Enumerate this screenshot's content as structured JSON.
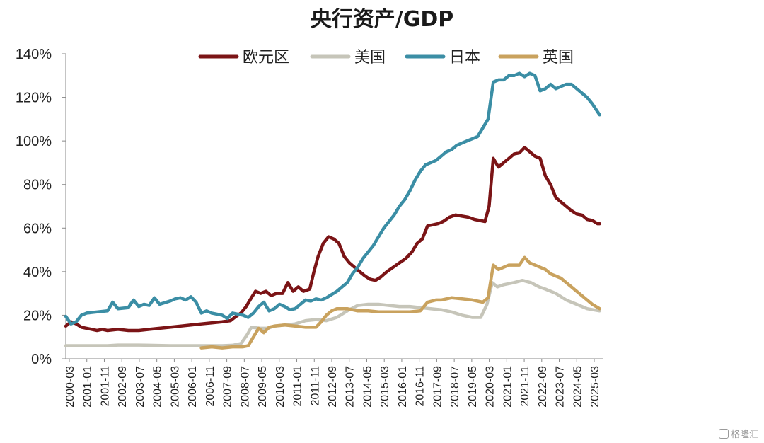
{
  "chart_data": {
    "type": "line",
    "title": "央行资产/GDP",
    "xlabel": "",
    "ylabel": "",
    "ylim": [
      0,
      140
    ],
    "yticks": [
      "0%",
      "20%",
      "40%",
      "60%",
      "80%",
      "100%",
      "120%",
      "140%"
    ],
    "x_start": 2000.0,
    "x_end": 2025.75,
    "xticks": [
      "2000-03",
      "2001-01",
      "2001-11",
      "2002-09",
      "2003-07",
      "2004-05",
      "2005-03",
      "2006-01",
      "2006-11",
      "2007-09",
      "2008-07",
      "2009-05",
      "2010-03",
      "2011-01",
      "2011-11",
      "2012-09",
      "2013-07",
      "2014-05",
      "2015-03",
      "2016-01",
      "2016-11",
      "2017-09",
      "2018-07",
      "2019-05",
      "2020-03",
      "2021-01",
      "2021-11",
      "2022-09",
      "2023-07",
      "2024-05",
      "2025-03"
    ],
    "legend_position": "top",
    "series": [
      {
        "name": "欧元区",
        "color": "#7b1416",
        "points": [
          [
            2000.0,
            15
          ],
          [
            2000.25,
            17
          ],
          [
            2000.5,
            16
          ],
          [
            2000.75,
            14.5
          ],
          [
            2001.0,
            14
          ],
          [
            2001.25,
            13.5
          ],
          [
            2001.5,
            13
          ],
          [
            2001.75,
            13.5
          ],
          [
            2002.0,
            13
          ],
          [
            2002.5,
            13.5
          ],
          [
            2003.0,
            13
          ],
          [
            2003.5,
            13
          ],
          [
            2004.0,
            13.5
          ],
          [
            2004.5,
            14
          ],
          [
            2005.0,
            14.5
          ],
          [
            2005.5,
            15
          ],
          [
            2006.0,
            15.5
          ],
          [
            2006.5,
            16
          ],
          [
            2007.0,
            16.5
          ],
          [
            2007.5,
            17
          ],
          [
            2007.9,
            17.5
          ],
          [
            2008.1,
            19
          ],
          [
            2008.4,
            21
          ],
          [
            2008.65,
            24
          ],
          [
            2008.9,
            28
          ],
          [
            2009.1,
            31
          ],
          [
            2009.35,
            30
          ],
          [
            2009.6,
            31
          ],
          [
            2009.85,
            29
          ],
          [
            2010.1,
            30
          ],
          [
            2010.4,
            30
          ],
          [
            2010.65,
            35
          ],
          [
            2010.9,
            31
          ],
          [
            2011.15,
            33
          ],
          [
            2011.4,
            31
          ],
          [
            2011.7,
            32
          ],
          [
            2011.9,
            40
          ],
          [
            2012.1,
            47
          ],
          [
            2012.35,
            53
          ],
          [
            2012.6,
            56
          ],
          [
            2012.85,
            55
          ],
          [
            2013.1,
            53
          ],
          [
            2013.35,
            47
          ],
          [
            2013.6,
            44
          ],
          [
            2013.85,
            42
          ],
          [
            2014.1,
            40
          ],
          [
            2014.35,
            38
          ],
          [
            2014.6,
            36.5
          ],
          [
            2014.85,
            36
          ],
          [
            2015.1,
            37.5
          ],
          [
            2015.4,
            40
          ],
          [
            2015.7,
            42
          ],
          [
            2016.0,
            44
          ],
          [
            2016.3,
            46
          ],
          [
            2016.6,
            49
          ],
          [
            2016.85,
            53
          ],
          [
            2017.1,
            55
          ],
          [
            2017.35,
            61
          ],
          [
            2017.6,
            61.5
          ],
          [
            2017.85,
            62
          ],
          [
            2018.1,
            63
          ],
          [
            2018.4,
            65
          ],
          [
            2018.7,
            66
          ],
          [
            2019.0,
            65.5
          ],
          [
            2019.3,
            65
          ],
          [
            2019.6,
            64
          ],
          [
            2019.85,
            63.5
          ],
          [
            2020.1,
            63
          ],
          [
            2020.3,
            70
          ],
          [
            2020.5,
            92
          ],
          [
            2020.75,
            88
          ],
          [
            2021.0,
            90
          ],
          [
            2021.25,
            92
          ],
          [
            2021.5,
            94
          ],
          [
            2021.75,
            94.5
          ],
          [
            2022.0,
            97
          ],
          [
            2022.25,
            95
          ],
          [
            2022.5,
            93
          ],
          [
            2022.75,
            92
          ],
          [
            2023.0,
            84
          ],
          [
            2023.25,
            80
          ],
          [
            2023.5,
            74
          ],
          [
            2023.75,
            72
          ],
          [
            2024.0,
            70
          ],
          [
            2024.25,
            68
          ],
          [
            2024.5,
            66.5
          ],
          [
            2024.75,
            66
          ],
          [
            2025.0,
            64
          ],
          [
            2025.25,
            63.5
          ],
          [
            2025.5,
            62
          ],
          [
            2025.6,
            62
          ]
        ]
      },
      {
        "name": "美国",
        "color": "#c6c5b9",
        "points": [
          [
            2000.0,
            6
          ],
          [
            2001.0,
            6
          ],
          [
            2002.0,
            6
          ],
          [
            2002.5,
            6.3
          ],
          [
            2003.0,
            6.3
          ],
          [
            2003.5,
            6.3
          ],
          [
            2004.0,
            6.2
          ],
          [
            2005.0,
            6
          ],
          [
            2006.0,
            6
          ],
          [
            2007.0,
            6
          ],
          [
            2007.5,
            6
          ],
          [
            2008.0,
            6.2
          ],
          [
            2008.4,
            7
          ],
          [
            2008.7,
            11
          ],
          [
            2008.9,
            14.5
          ],
          [
            2009.3,
            14
          ],
          [
            2009.7,
            14
          ],
          [
            2010.0,
            15
          ],
          [
            2010.5,
            15.5
          ],
          [
            2011.0,
            16
          ],
          [
            2011.5,
            17.5
          ],
          [
            2012.0,
            18
          ],
          [
            2012.5,
            17.5
          ],
          [
            2013.0,
            19
          ],
          [
            2013.5,
            22
          ],
          [
            2014.0,
            24.5
          ],
          [
            2014.5,
            25
          ],
          [
            2015.0,
            25
          ],
          [
            2015.5,
            24.5
          ],
          [
            2016.0,
            24
          ],
          [
            2016.5,
            24
          ],
          [
            2017.0,
            23.5
          ],
          [
            2017.5,
            23
          ],
          [
            2018.0,
            22.5
          ],
          [
            2018.5,
            21.5
          ],
          [
            2019.0,
            20
          ],
          [
            2019.5,
            19
          ],
          [
            2019.9,
            19
          ],
          [
            2020.2,
            25
          ],
          [
            2020.45,
            35
          ],
          [
            2020.7,
            33
          ],
          [
            2021.0,
            34
          ],
          [
            2021.5,
            35
          ],
          [
            2021.9,
            36
          ],
          [
            2022.3,
            35
          ],
          [
            2022.7,
            33
          ],
          [
            2023.0,
            32
          ],
          [
            2023.5,
            30
          ],
          [
            2024.0,
            27
          ],
          [
            2024.5,
            25
          ],
          [
            2025.0,
            23
          ],
          [
            2025.6,
            22
          ]
        ]
      },
      {
        "name": "日本",
        "color": "#3b8ea5",
        "points": [
          [
            2000.0,
            19.5
          ],
          [
            2000.25,
            16
          ],
          [
            2000.5,
            17
          ],
          [
            2000.75,
            20
          ],
          [
            2001.0,
            21
          ],
          [
            2001.5,
            21.5
          ],
          [
            2002.0,
            22
          ],
          [
            2002.25,
            26
          ],
          [
            2002.5,
            23
          ],
          [
            2003.0,
            23.5
          ],
          [
            2003.25,
            27
          ],
          [
            2003.5,
            24
          ],
          [
            2003.75,
            25
          ],
          [
            2004.0,
            24.5
          ],
          [
            2004.25,
            28
          ],
          [
            2004.5,
            25
          ],
          [
            2005.0,
            26.5
          ],
          [
            2005.25,
            27.5
          ],
          [
            2005.5,
            28
          ],
          [
            2005.75,
            27
          ],
          [
            2006.0,
            28.5
          ],
          [
            2006.25,
            26
          ],
          [
            2006.5,
            21
          ],
          [
            2006.75,
            22
          ],
          [
            2007.0,
            21
          ],
          [
            2007.5,
            20
          ],
          [
            2007.75,
            18.5
          ],
          [
            2008.0,
            21
          ],
          [
            2008.5,
            20
          ],
          [
            2008.75,
            19
          ],
          [
            2009.0,
            21
          ],
          [
            2009.25,
            24
          ],
          [
            2009.5,
            26
          ],
          [
            2009.75,
            22
          ],
          [
            2010.0,
            23
          ],
          [
            2010.25,
            25
          ],
          [
            2010.5,
            24
          ],
          [
            2010.75,
            22.5
          ],
          [
            2011.0,
            23
          ],
          [
            2011.25,
            25
          ],
          [
            2011.5,
            27
          ],
          [
            2011.75,
            26.5
          ],
          [
            2012.0,
            27.5
          ],
          [
            2012.25,
            27
          ],
          [
            2012.5,
            28
          ],
          [
            2012.75,
            29.5
          ],
          [
            2013.0,
            31
          ],
          [
            2013.25,
            33
          ],
          [
            2013.5,
            35
          ],
          [
            2013.75,
            39
          ],
          [
            2014.0,
            42
          ],
          [
            2014.25,
            46
          ],
          [
            2014.5,
            49
          ],
          [
            2014.75,
            52
          ],
          [
            2015.0,
            56
          ],
          [
            2015.25,
            60
          ],
          [
            2015.5,
            63
          ],
          [
            2015.75,
            66
          ],
          [
            2016.0,
            70
          ],
          [
            2016.25,
            73
          ],
          [
            2016.5,
            77
          ],
          [
            2016.75,
            82
          ],
          [
            2017.0,
            86
          ],
          [
            2017.25,
            89
          ],
          [
            2017.5,
            90
          ],
          [
            2017.75,
            91
          ],
          [
            2018.0,
            93
          ],
          [
            2018.25,
            95
          ],
          [
            2018.5,
            96
          ],
          [
            2018.75,
            98
          ],
          [
            2019.0,
            99
          ],
          [
            2019.25,
            100
          ],
          [
            2019.5,
            101
          ],
          [
            2019.75,
            102
          ],
          [
            2020.0,
            106
          ],
          [
            2020.25,
            110
          ],
          [
            2020.5,
            127
          ],
          [
            2020.75,
            128
          ],
          [
            2021.0,
            128
          ],
          [
            2021.25,
            130
          ],
          [
            2021.5,
            130
          ],
          [
            2021.75,
            131
          ],
          [
            2022.0,
            129.5
          ],
          [
            2022.25,
            131
          ],
          [
            2022.5,
            130
          ],
          [
            2022.75,
            123
          ],
          [
            2023.0,
            124
          ],
          [
            2023.25,
            126
          ],
          [
            2023.5,
            124
          ],
          [
            2023.75,
            125
          ],
          [
            2024.0,
            126
          ],
          [
            2024.25,
            126
          ],
          [
            2024.5,
            124
          ],
          [
            2024.75,
            122
          ],
          [
            2025.0,
            120
          ],
          [
            2025.25,
            117
          ],
          [
            2025.6,
            112
          ]
        ]
      },
      {
        "name": "英国",
        "color": "#c9a25e",
        "points": [
          [
            2006.5,
            5
          ],
          [
            2007.0,
            5.5
          ],
          [
            2007.5,
            5
          ],
          [
            2008.0,
            5.5
          ],
          [
            2008.5,
            5.5
          ],
          [
            2008.75,
            6
          ],
          [
            2009.0,
            10
          ],
          [
            2009.25,
            14
          ],
          [
            2009.5,
            12
          ],
          [
            2009.75,
            14.5
          ],
          [
            2010.0,
            15
          ],
          [
            2010.5,
            15.5
          ],
          [
            2011.0,
            15
          ],
          [
            2011.5,
            14.5
          ],
          [
            2012.0,
            14.5
          ],
          [
            2012.25,
            17
          ],
          [
            2012.5,
            20
          ],
          [
            2012.75,
            22
          ],
          [
            2013.0,
            23
          ],
          [
            2013.5,
            23
          ],
          [
            2014.0,
            22
          ],
          [
            2014.5,
            22
          ],
          [
            2015.0,
            21.5
          ],
          [
            2015.5,
            21.5
          ],
          [
            2016.0,
            21.5
          ],
          [
            2016.5,
            21.5
          ],
          [
            2017.0,
            22
          ],
          [
            2017.35,
            26
          ],
          [
            2017.75,
            27
          ],
          [
            2018.0,
            27
          ],
          [
            2018.5,
            28
          ],
          [
            2019.0,
            27.5
          ],
          [
            2019.5,
            27
          ],
          [
            2020.0,
            26
          ],
          [
            2020.25,
            28
          ],
          [
            2020.5,
            43
          ],
          [
            2020.75,
            41
          ],
          [
            2021.0,
            42
          ],
          [
            2021.25,
            43
          ],
          [
            2021.5,
            43
          ],
          [
            2021.75,
            43
          ],
          [
            2022.0,
            46.5
          ],
          [
            2022.25,
            44
          ],
          [
            2022.5,
            43
          ],
          [
            2022.75,
            42
          ],
          [
            2023.0,
            41
          ],
          [
            2023.25,
            39
          ],
          [
            2023.5,
            38
          ],
          [
            2023.75,
            37
          ],
          [
            2024.0,
            35
          ],
          [
            2024.25,
            33
          ],
          [
            2024.5,
            31
          ],
          [
            2024.75,
            29
          ],
          [
            2025.0,
            27
          ],
          [
            2025.25,
            25
          ],
          [
            2025.6,
            23
          ]
        ]
      }
    ]
  },
  "watermark": {
    "text": "格隆汇",
    "icon": "watermark-logo-icon"
  }
}
